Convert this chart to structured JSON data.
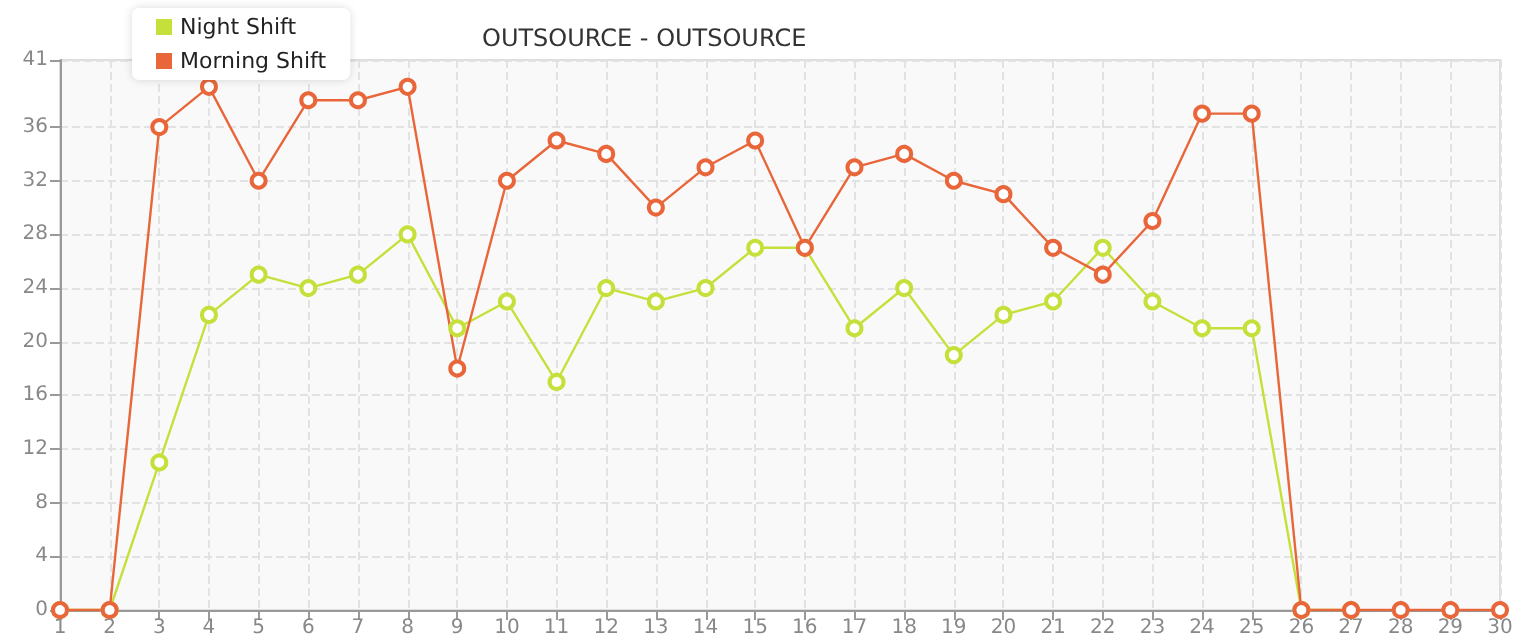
{
  "chart_data": {
    "type": "line",
    "title": "OUTSOURCE - OUTSOURCE",
    "x": [
      1,
      2,
      3,
      4,
      5,
      6,
      7,
      8,
      9,
      10,
      11,
      12,
      13,
      14,
      15,
      16,
      17,
      18,
      19,
      20,
      21,
      22,
      23,
      24,
      25,
      26,
      27,
      28,
      29,
      30
    ],
    "xlim": [
      1,
      30
    ],
    "xticks": [
      1,
      2,
      3,
      4,
      5,
      6,
      7,
      8,
      9,
      10,
      11,
      12,
      13,
      14,
      15,
      16,
      17,
      18,
      19,
      20,
      21,
      22,
      23,
      24,
      25,
      26,
      27,
      28,
      29,
      30
    ],
    "ylim": [
      0,
      41
    ],
    "yticks": [
      0,
      4,
      8,
      12,
      16,
      20,
      24,
      28,
      32,
      36,
      41
    ],
    "series": [
      {
        "name": "Night Shift",
        "color": "#c5e03a",
        "values": [
          0,
          0,
          11,
          22,
          25,
          24,
          25,
          28,
          21,
          23,
          17,
          24,
          23,
          24,
          27,
          27,
          21,
          24,
          19,
          22,
          23,
          27,
          23,
          21,
          21,
          0,
          0,
          null,
          null,
          null
        ]
      },
      {
        "name": "Morning Shift",
        "color": "#e8663a",
        "values": [
          0,
          0,
          36,
          39,
          32,
          38,
          38,
          39,
          18,
          32,
          35,
          34,
          30,
          33,
          35,
          27,
          33,
          34,
          32,
          31,
          27,
          25,
          29,
          37,
          37,
          0,
          0,
          0,
          0,
          0
        ]
      }
    ],
    "grid": true,
    "legend": "top left",
    "marker": "circle",
    "line_style": "solid"
  }
}
